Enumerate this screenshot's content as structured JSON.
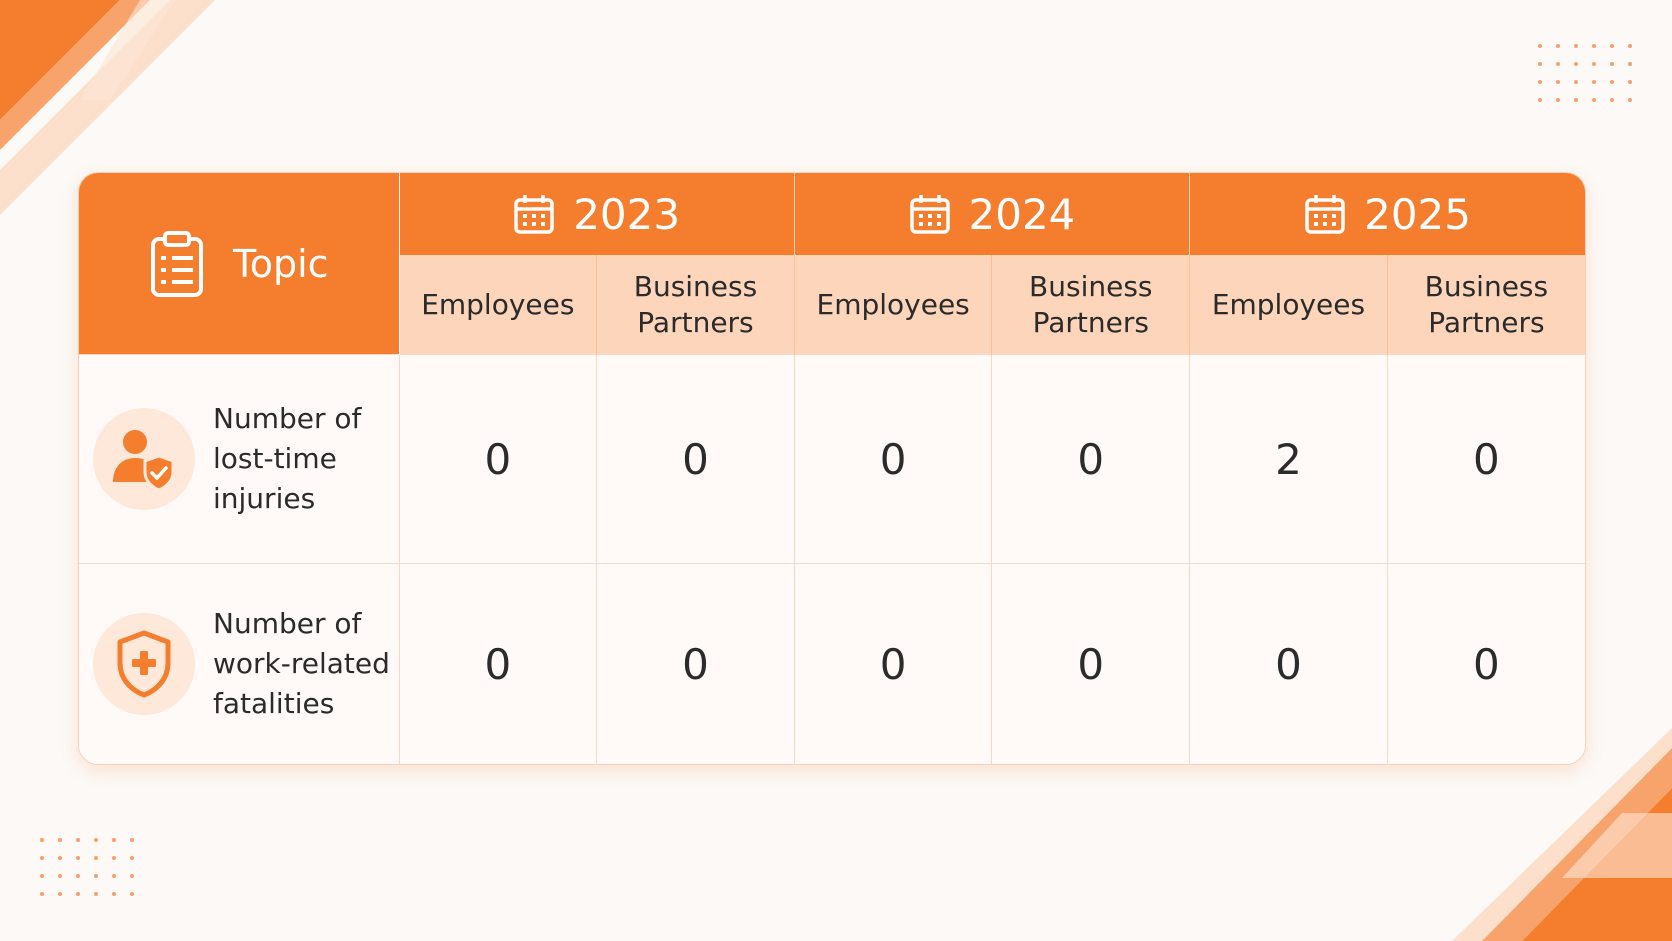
{
  "colors": {
    "accent": "#f57d2e",
    "subheader_bg": "#fcd5bb",
    "icon_bg": "#fde8da",
    "page_bg": "#fcf9f6"
  },
  "header": {
    "topic_label": "Topic",
    "topic_icon": "clipboard-icon",
    "years": [
      {
        "label": "2023",
        "icon": "calendar-icon"
      },
      {
        "label": "2024",
        "icon": "calendar-icon"
      },
      {
        "label": "2025",
        "icon": "calendar-icon"
      }
    ],
    "sub_columns": [
      {
        "line1": "Employees",
        "line2": ""
      },
      {
        "line1": "Business",
        "line2": "Partners"
      },
      {
        "line1": "Employees",
        "line2": ""
      },
      {
        "line1": "Business",
        "line2": "Partners"
      },
      {
        "line1": "Employees",
        "line2": ""
      },
      {
        "line1": "Business",
        "line2": "Partners"
      }
    ]
  },
  "rows": [
    {
      "icon": "person-shield-check-icon",
      "label_lines": [
        "Number of",
        "lost-time",
        "injuries"
      ],
      "values": [
        "0",
        "0",
        "0",
        "0",
        "2",
        "0"
      ]
    },
    {
      "icon": "shield-plus-icon",
      "label_lines": [
        "Number of",
        "work-related",
        "fatalities"
      ],
      "values": [
        "0",
        "0",
        "0",
        "0",
        "0",
        "0"
      ]
    }
  ]
}
